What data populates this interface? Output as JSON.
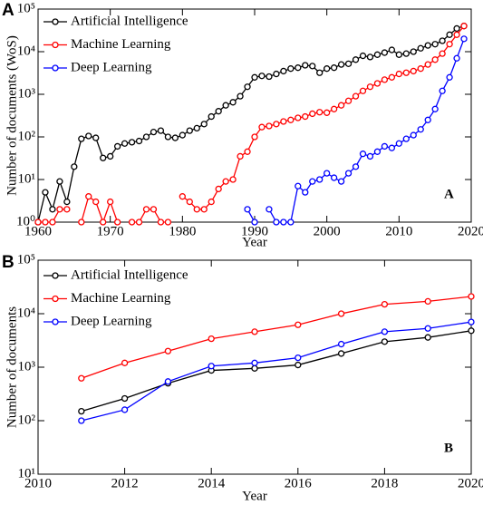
{
  "chart_data": [
    {
      "type": "line",
      "panel_label": "A",
      "annotation": "A",
      "x_label": "Year",
      "y_label": "Number of documents (WoS)",
      "log_y": true,
      "legend": "upper left",
      "x": [
        1960,
        1961,
        1962,
        1963,
        1964,
        1965,
        1966,
        1967,
        1968,
        1969,
        1970,
        1971,
        1972,
        1973,
        1974,
        1975,
        1976,
        1977,
        1978,
        1979,
        1980,
        1981,
        1982,
        1983,
        1984,
        1985,
        1986,
        1987,
        1988,
        1989,
        1990,
        1991,
        1992,
        1993,
        1994,
        1995,
        1996,
        1997,
        1998,
        1999,
        2000,
        2001,
        2002,
        2003,
        2004,
        2005,
        2006,
        2007,
        2008,
        2009,
        2010,
        2011,
        2012,
        2013,
        2014,
        2015,
        2016,
        2017,
        2018,
        2019
      ],
      "xlim": [
        1960,
        2020
      ],
      "xticks": [
        1960,
        1970,
        1980,
        1990,
        2000,
        2010,
        2020
      ],
      "ylim": [
        1,
        100000
      ],
      "yticks": [
        {
          "value": 1,
          "label": "10⁰"
        },
        {
          "value": 10,
          "label": "10¹"
        },
        {
          "value": 100,
          "label": "10²"
        },
        {
          "value": 1000,
          "label": "10³"
        },
        {
          "value": 10000,
          "label": "10⁴"
        },
        {
          "value": 100000,
          "label": "10⁵"
        }
      ],
      "series": [
        {
          "name": "Artificial Intelligence",
          "color": "#000000",
          "values": [
            1,
            5,
            2,
            9,
            3,
            20,
            90,
            105,
            95,
            32,
            35,
            60,
            70,
            75,
            80,
            100,
            130,
            140,
            100,
            95,
            110,
            140,
            160,
            200,
            300,
            400,
            550,
            650,
            900,
            1500,
            2500,
            2700,
            2600,
            3000,
            3500,
            4000,
            4200,
            4800,
            4600,
            3200,
            4000,
            4200,
            5000,
            5200,
            6500,
            8000,
            7500,
            8500,
            9500,
            11000,
            8500,
            9000,
            10000,
            12000,
            14000,
            15000,
            18000,
            25000,
            35000,
            40000
          ]
        },
        {
          "name": "Machine Learning",
          "color": "#ff0000",
          "values": [
            1,
            1,
            1,
            2,
            2,
            null,
            1,
            4,
            3,
            1,
            3,
            1,
            null,
            1,
            1,
            2,
            2,
            1,
            1,
            null,
            4,
            3,
            2,
            2,
            3,
            6,
            9,
            10,
            35,
            45,
            100,
            170,
            180,
            200,
            230,
            250,
            280,
            300,
            350,
            380,
            370,
            450,
            550,
            700,
            900,
            1200,
            1500,
            1800,
            2200,
            2500,
            3000,
            3200,
            3500,
            4000,
            5000,
            6500,
            9000,
            15000,
            25000,
            40000
          ]
        },
        {
          "name": "Deep Learning",
          "color": "#0000ff",
          "values": [
            null,
            null,
            null,
            null,
            null,
            null,
            null,
            null,
            null,
            null,
            null,
            null,
            null,
            null,
            null,
            null,
            null,
            null,
            null,
            null,
            null,
            null,
            null,
            null,
            null,
            null,
            null,
            null,
            null,
            2,
            1,
            null,
            2,
            1,
            1,
            1,
            7,
            5,
            9,
            10,
            14,
            11,
            9,
            14,
            20,
            40,
            35,
            45,
            60,
            55,
            70,
            90,
            110,
            150,
            250,
            450,
            1200,
            2500,
            7000,
            20000
          ]
        }
      ]
    },
    {
      "type": "line",
      "panel_label": "B",
      "annotation": "B",
      "x_label": "Year",
      "y_label": "Number of documents",
      "log_y": true,
      "legend": "upper left",
      "x": [
        2011,
        2012,
        2013,
        2014,
        2015,
        2016,
        2017,
        2018,
        2019,
        2020
      ],
      "xlim": [
        2010,
        2020
      ],
      "xticks": [
        2010,
        2012,
        2014,
        2016,
        2018,
        2020
      ],
      "ylim": [
        10,
        100000
      ],
      "yticks": [
        {
          "value": 10,
          "label": "10¹"
        },
        {
          "value": 100,
          "label": "10²"
        },
        {
          "value": 1000,
          "label": "10³"
        },
        {
          "value": 10000,
          "label": "10⁴"
        },
        {
          "value": 100000,
          "label": "10⁵"
        }
      ],
      "series": [
        {
          "name": "Artificial Intelligence",
          "color": "#000000",
          "values": [
            150,
            260,
            500,
            870,
            950,
            1100,
            1800,
            3000,
            3600,
            4800
          ]
        },
        {
          "name": "Machine Learning",
          "color": "#ff0000",
          "values": [
            620,
            1200,
            2000,
            3400,
            4600,
            6200,
            10000,
            15000,
            17000,
            21000
          ]
        },
        {
          "name": "Deep Learning",
          "color": "#0000ff",
          "values": [
            100,
            160,
            540,
            1050,
            1200,
            1500,
            2700,
            4600,
            5300,
            7000
          ]
        }
      ]
    }
  ]
}
